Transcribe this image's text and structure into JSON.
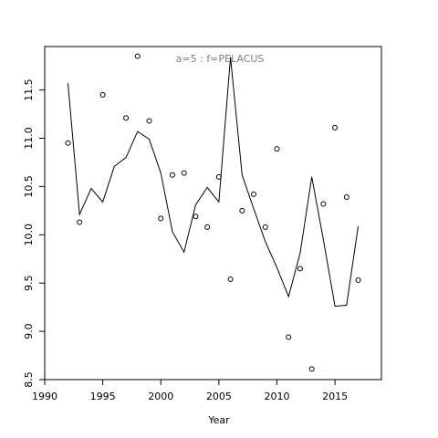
{
  "chart_data": {
    "type": "scatter",
    "annotation": "a=5  :  f=PELACUS",
    "xlabel": "Year",
    "ylabel": "",
    "xlim": [
      1990,
      2019
    ],
    "ylim": [
      8.5,
      11.95
    ],
    "xticks": [
      1990,
      1995,
      2000,
      2005,
      2010,
      2015
    ],
    "xtick_labels": [
      "1990",
      "1995",
      "2000",
      "2005",
      "2010",
      "2015"
    ],
    "yticks": [
      8.5,
      9.0,
      9.5,
      10.0,
      10.5,
      11.0,
      11.5
    ],
    "ytick_labels": [
      "8.5",
      "9.0",
      "9.5",
      "10.0",
      "10.5",
      "11.0",
      "11.5"
    ],
    "grid": false,
    "legend": "none",
    "series": [
      {
        "kind": "points",
        "x": [
          1992,
          1993,
          1995,
          1997,
          1998,
          1999,
          2000,
          2001,
          2002,
          2003,
          2004,
          2005,
          2006,
          2007,
          2008,
          2009,
          2010,
          2011,
          2012,
          2013,
          2014,
          2015,
          2016,
          2017
        ],
        "y": [
          10.95,
          10.13,
          11.45,
          11.21,
          11.85,
          11.18,
          10.17,
          10.62,
          10.64,
          10.19,
          10.08,
          10.6,
          9.54,
          10.25,
          10.42,
          10.08,
          10.89,
          8.94,
          9.65,
          8.61,
          10.32,
          11.11,
          10.39,
          9.53
        ]
      },
      {
        "kind": "line",
        "x": [
          1992,
          1993,
          1994,
          1995,
          1996,
          1997,
          1998,
          1999,
          2000,
          2001,
          2002,
          2003,
          2004,
          2005,
          2006,
          2007,
          2008,
          2009,
          2010,
          2011,
          2012,
          2013,
          2014,
          2015,
          2016,
          2017
        ],
        "y": [
          11.57,
          10.21,
          10.48,
          10.34,
          10.71,
          10.8,
          11.07,
          10.99,
          10.64,
          10.03,
          9.82,
          10.31,
          10.49,
          10.34,
          11.84,
          10.62,
          10.27,
          9.93,
          9.66,
          9.36,
          9.81,
          10.6,
          9.95,
          9.26,
          9.27,
          10.09
        ]
      }
    ]
  }
}
